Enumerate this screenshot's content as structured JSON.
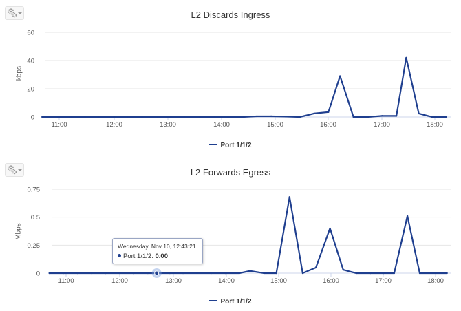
{
  "icons": {
    "settings": "gear-icon",
    "dropdown": "caret-down-icon"
  },
  "colors": {
    "series": "#1f3f8f",
    "grid": "#e6e6e6",
    "axis": "#ccd6eb",
    "marker_halo": "#7f9fdc"
  },
  "chart_data": [
    {
      "type": "line",
      "title": "L2 Discards Ingress",
      "ylabel": "kbps",
      "ylim": [
        0,
        60
      ],
      "yticks": [
        "0",
        "20",
        "40",
        "60"
      ],
      "xticks": [
        "11:00",
        "12:00",
        "13:00",
        "14:00",
        "15:00",
        "16:00",
        "17:00",
        "18:00"
      ],
      "grid": "horizontal",
      "legend": "bottom-center",
      "series": [
        {
          "name": "Port 1/1/2",
          "points": [
            [
              "10:41",
              0
            ],
            [
              "10:57",
              0
            ],
            [
              "11:13",
              0
            ],
            [
              "11:29",
              0
            ],
            [
              "11:45",
              0
            ],
            [
              "12:01",
              0
            ],
            [
              "12:17",
              0
            ],
            [
              "12:33",
              0
            ],
            [
              "12:49",
              0
            ],
            [
              "13:05",
              0
            ],
            [
              "13:21",
              0
            ],
            [
              "13:37",
              0
            ],
            [
              "13:53",
              0
            ],
            [
              "14:09",
              0
            ],
            [
              "14:25",
              0
            ],
            [
              "14:41",
              0.5
            ],
            [
              "14:57",
              0.5
            ],
            [
              "15:13",
              0.3
            ],
            [
              "15:29",
              0
            ],
            [
              "15:45",
              2.5
            ],
            [
              "16:01",
              3.5
            ],
            [
              "16:14",
              29
            ],
            [
              "16:29",
              0
            ],
            [
              "16:45",
              0
            ],
            [
              "17:01",
              0.8
            ],
            [
              "17:17",
              0.8
            ],
            [
              "17:28",
              42
            ],
            [
              "17:42",
              2.5
            ],
            [
              "17:57",
              0
            ],
            [
              "18:13",
              0
            ]
          ]
        }
      ]
    },
    {
      "type": "line",
      "title": "L2 Forwards Egress",
      "ylabel": "Mbps",
      "ylim": [
        0,
        0.75
      ],
      "yticks": [
        "0",
        "0.25",
        "0.5",
        "0.75"
      ],
      "xticks": [
        "11:00",
        "12:00",
        "13:00",
        "14:00",
        "15:00",
        "16:00",
        "17:00",
        "18:00"
      ],
      "grid": "horizontal",
      "legend": "bottom-center",
      "series": [
        {
          "name": "Port 1/1/2",
          "points": [
            [
              "10:41",
              0
            ],
            [
              "10:57",
              0
            ],
            [
              "11:13",
              0
            ],
            [
              "11:29",
              0
            ],
            [
              "11:45",
              0
            ],
            [
              "12:01",
              0
            ],
            [
              "12:17",
              0
            ],
            [
              "12:33",
              0
            ],
            [
              "12:43",
              0
            ],
            [
              "12:58",
              0
            ],
            [
              "13:13",
              0
            ],
            [
              "13:29",
              0
            ],
            [
              "13:45",
              0
            ],
            [
              "14:01",
              0
            ],
            [
              "14:17",
              0
            ],
            [
              "14:29",
              0.02
            ],
            [
              "14:45",
              0
            ],
            [
              "14:59",
              0
            ],
            [
              "15:14",
              0.68
            ],
            [
              "15:29",
              0
            ],
            [
              "15:44",
              0.05
            ],
            [
              "16:00",
              0.4
            ],
            [
              "16:15",
              0.03
            ],
            [
              "16:30",
              0
            ],
            [
              "16:46",
              0
            ],
            [
              "17:01",
              0
            ],
            [
              "17:13",
              0
            ],
            [
              "17:28",
              0.51
            ],
            [
              "17:42",
              0
            ],
            [
              "18:13",
              0
            ]
          ]
        }
      ]
    }
  ],
  "tooltip": {
    "date": "Wednesday, Nov 10, 12:43:21",
    "series_label": "Port 1/1/2: ",
    "value": "0.00",
    "point_time": "12:43"
  }
}
